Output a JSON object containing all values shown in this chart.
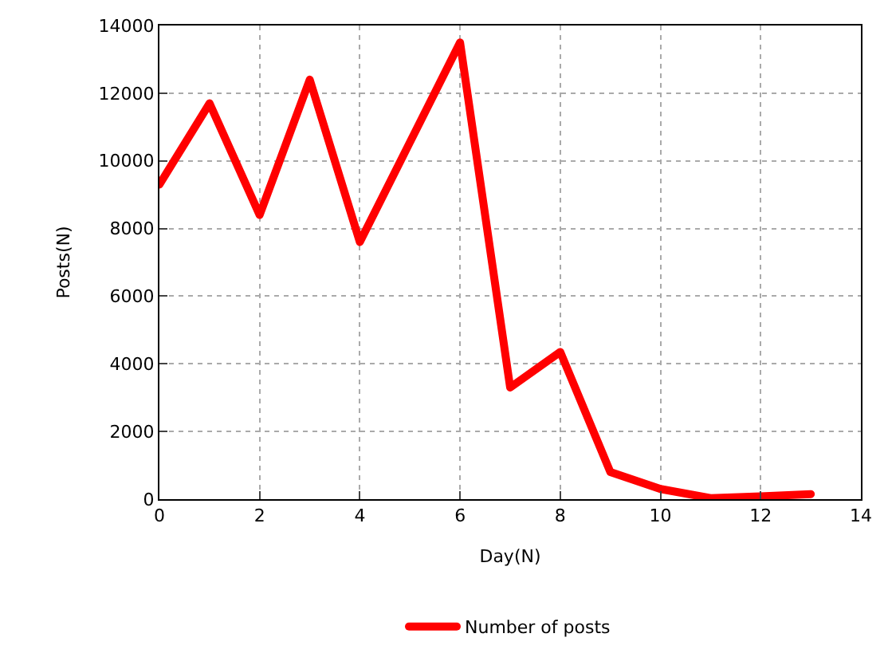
{
  "chart_data": {
    "type": "line",
    "xlabel": "Day(N)",
    "ylabel": "Posts(N)",
    "x": [
      0,
      1,
      2,
      3,
      4,
      5,
      6,
      7,
      8,
      9,
      10,
      11,
      12,
      13
    ],
    "series": [
      {
        "name": "Number of posts",
        "color": "#ff0000",
        "values": [
          9300,
          11700,
          8400,
          12400,
          7600,
          10550,
          13500,
          3300,
          4350,
          800,
          300,
          30,
          80,
          150
        ]
      }
    ],
    "xlim": [
      0,
      14
    ],
    "xticks": [
      0,
      2,
      4,
      6,
      8,
      10,
      12,
      14
    ],
    "ylim": [
      0,
      14000
    ],
    "yticks": [
      0,
      2000,
      4000,
      6000,
      8000,
      10000,
      12000,
      14000
    ],
    "grid": true,
    "legend": "bottom",
    "marker": "none",
    "line_style": "solid"
  }
}
